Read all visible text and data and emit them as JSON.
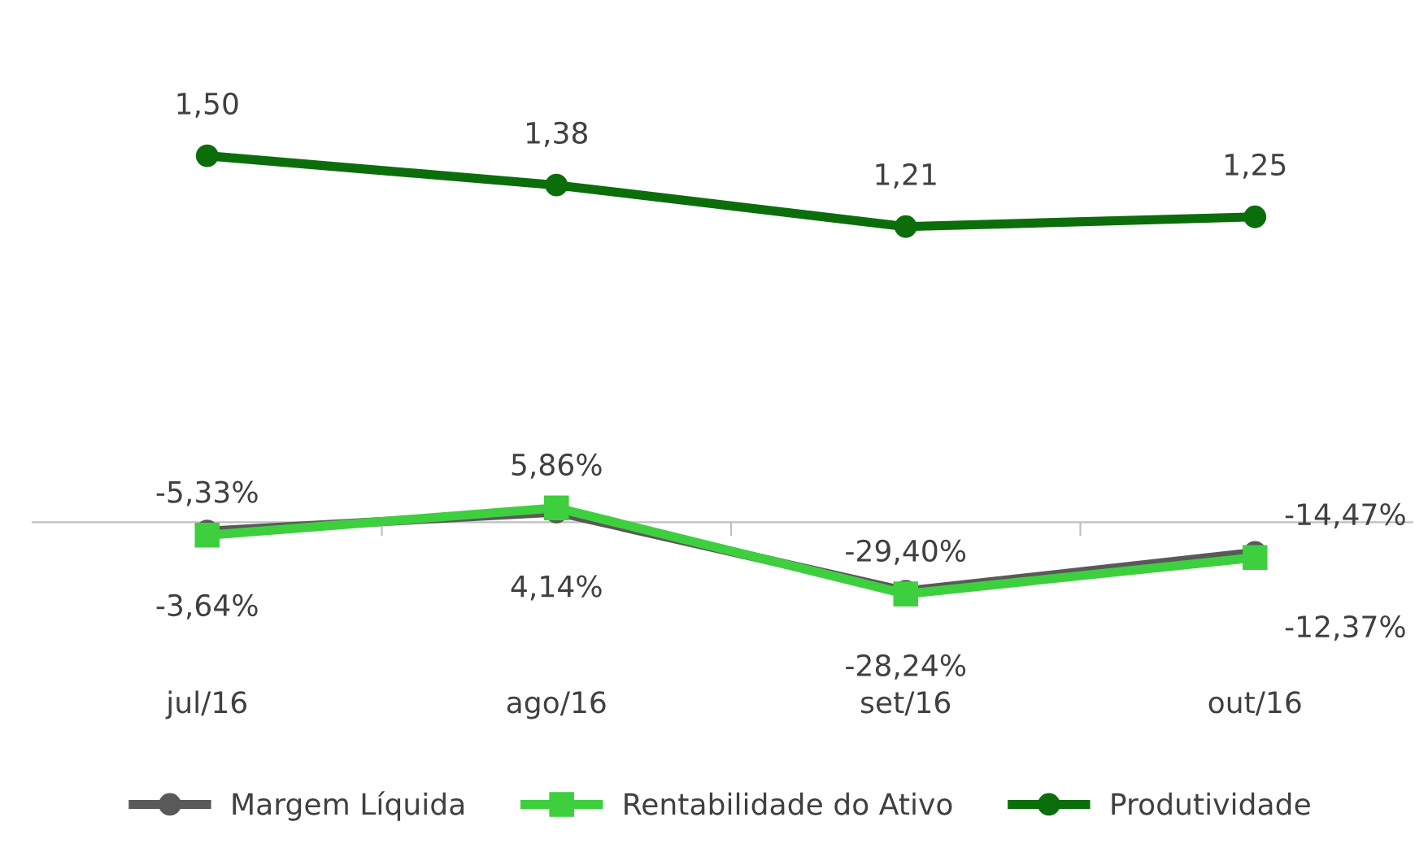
{
  "chart_data": {
    "type": "line",
    "categories": [
      "jul/16",
      "ago/16",
      "set/16",
      "out/16"
    ],
    "series": [
      {
        "name": "Margem Líquida",
        "color": "#595959",
        "marker": "circle",
        "values": [
          -0.0364,
          0.0414,
          -0.2824,
          -0.1237
        ],
        "value_labels": [
          "-3,64%",
          "4,14%",
          "-28,24%",
          "-12,37%"
        ]
      },
      {
        "name": "Rentabilidade do Ativo",
        "color": "#3ecf3e",
        "marker": "square",
        "values": [
          -0.0533,
          0.0586,
          -0.294,
          -0.1447
        ],
        "value_labels": [
          "-5,33%",
          "5,86%",
          "-29,40%",
          "-14,47%"
        ]
      },
      {
        "name": "Produtividade",
        "color": "#0b6e0b",
        "marker": "circle",
        "values": [
          1.5,
          1.38,
          1.21,
          1.25
        ],
        "value_labels": [
          "1,50",
          "1,38",
          "1,21",
          "1,25"
        ]
      }
    ],
    "tick_labels": "x",
    "grid": false,
    "legend": "bottom",
    "line_style": "solid"
  }
}
